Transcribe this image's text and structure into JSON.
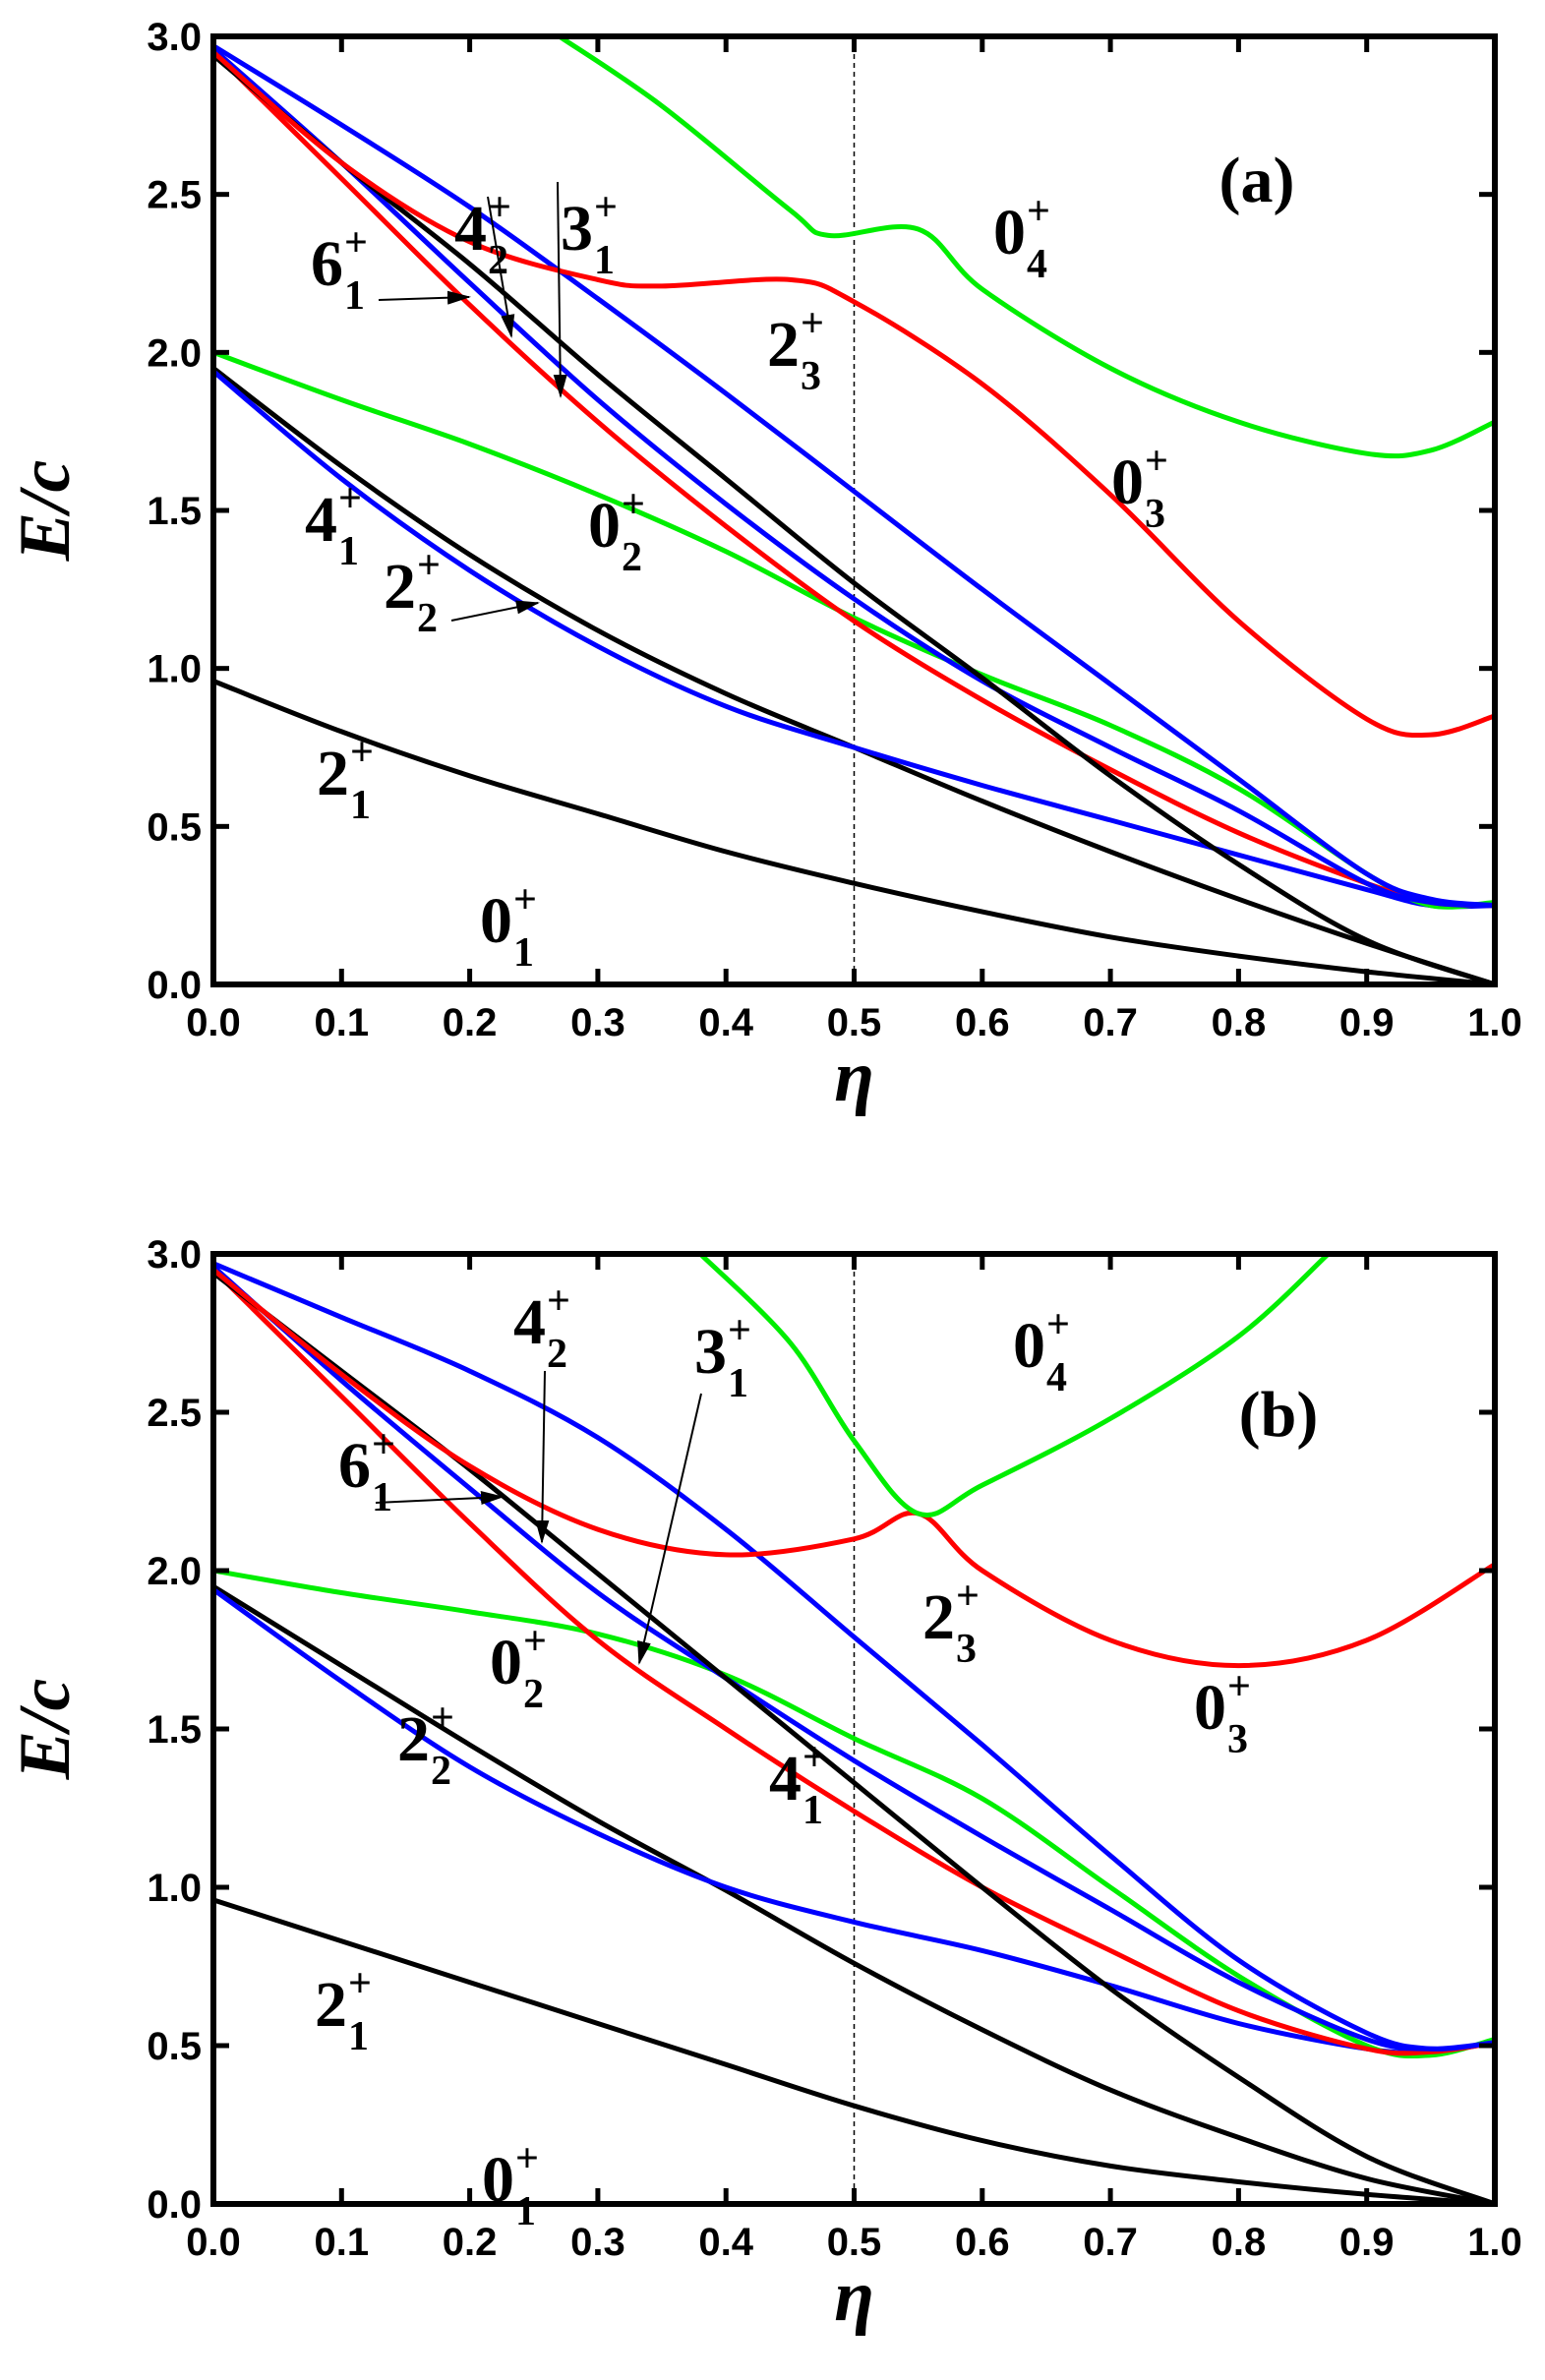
{
  "chart_data": [
    {
      "type": "line",
      "panel_label": "(a)",
      "xlabel": "η",
      "ylabel": "E/c",
      "xlim": [
        0,
        1
      ],
      "ylim": [
        0,
        3
      ],
      "xticks": [
        "0.0",
        "0.1",
        "0.2",
        "0.3",
        "0.4",
        "0.5",
        "0.6",
        "0.7",
        "0.8",
        "0.9",
        "1.0"
      ],
      "yticks": [
        "0.0",
        "0.5",
        "1.0",
        "1.5",
        "2.0",
        "2.5",
        "3.0"
      ],
      "reference_line_x": 0.5,
      "series": [
        {
          "name": "2+1",
          "color": "#000000",
          "x": [
            0,
            0.1,
            0.2,
            0.3,
            0.4,
            0.5,
            0.6,
            0.7,
            0.8,
            0.9,
            1.0
          ],
          "y": [
            0.96,
            0.8,
            0.66,
            0.54,
            0.42,
            0.32,
            0.23,
            0.15,
            0.09,
            0.04,
            0.0
          ]
        },
        {
          "name": "4+1",
          "color": "#000000",
          "x": [
            0,
            0.1,
            0.2,
            0.3,
            0.4,
            0.5,
            0.6,
            0.7,
            0.8,
            0.9,
            1.0
          ],
          "y": [
            1.95,
            1.64,
            1.36,
            1.12,
            0.92,
            0.75,
            0.58,
            0.42,
            0.27,
            0.13,
            0.0
          ]
        },
        {
          "name": "2+2",
          "color": "#0000ff",
          "x": [
            0,
            0.1,
            0.2,
            0.3,
            0.4,
            0.5,
            0.6,
            0.7,
            0.8,
            0.9,
            0.95,
            1.0
          ],
          "y": [
            1.94,
            1.6,
            1.31,
            1.07,
            0.88,
            0.75,
            0.63,
            0.52,
            0.41,
            0.3,
            0.25,
            0.25
          ]
        },
        {
          "name": "0+2",
          "color": "#00ee00",
          "x": [
            0,
            0.1,
            0.2,
            0.3,
            0.4,
            0.5,
            0.6,
            0.7,
            0.8,
            0.9,
            0.95,
            1.0
          ],
          "y": [
            2.0,
            1.85,
            1.71,
            1.55,
            1.37,
            1.16,
            0.98,
            0.82,
            0.62,
            0.35,
            0.25,
            0.26
          ]
        },
        {
          "name": "6+1",
          "color": "#ff0000",
          "x": [
            0,
            0.1,
            0.2,
            0.3,
            0.4,
            0.5,
            0.6,
            0.7,
            0.8,
            0.9,
            0.95,
            1.0
          ],
          "y": [
            2.95,
            2.55,
            2.15,
            1.78,
            1.45,
            1.15,
            0.9,
            0.68,
            0.48,
            0.32,
            0.26,
            0.25
          ]
        },
        {
          "name": "3+1",
          "color": "#0000ff",
          "x": [
            0,
            0.1,
            0.2,
            0.3,
            0.4,
            0.5,
            0.6,
            0.7,
            0.8,
            0.9,
            0.95,
            1.0
          ],
          "y": [
            2.96,
            2.6,
            2.22,
            1.85,
            1.52,
            1.22,
            0.96,
            0.75,
            0.55,
            0.32,
            0.26,
            0.25
          ]
        },
        {
          "name": "4+2",
          "color": "#000000",
          "x": [
            0,
            0.1,
            0.2,
            0.3,
            0.4,
            0.5,
            0.6,
            0.7,
            0.8,
            0.9,
            1.0
          ],
          "y": [
            2.94,
            2.6,
            2.28,
            1.93,
            1.6,
            1.27,
            0.97,
            0.66,
            0.38,
            0.14,
            0.0
          ]
        },
        {
          "name": "2+3",
          "color": "#0000ff",
          "x": [
            0,
            0.1,
            0.2,
            0.3,
            0.4,
            0.5,
            0.6,
            0.7,
            0.8,
            0.9,
            0.95,
            1.0
          ],
          "y": [
            2.97,
            2.72,
            2.46,
            2.17,
            1.87,
            1.56,
            1.25,
            0.95,
            0.65,
            0.35,
            0.27,
            0.25
          ]
        },
        {
          "name": "0+3",
          "color": "#ff0000",
          "x": [
            0,
            0.1,
            0.2,
            0.3,
            0.35,
            0.45,
            0.5,
            0.6,
            0.7,
            0.8,
            0.9,
            0.95,
            1.0
          ],
          "y": [
            2.95,
            2.6,
            2.35,
            2.23,
            2.21,
            2.23,
            2.16,
            1.9,
            1.55,
            1.15,
            0.84,
            0.79,
            0.85
          ]
        },
        {
          "name": "0+4",
          "color": "#00ee00",
          "x": [
            0.27,
            0.35,
            0.45,
            0.48,
            0.55,
            0.6,
            0.7,
            0.8,
            0.9,
            0.95,
            1.0
          ],
          "y": [
            3.0,
            2.78,
            2.45,
            2.37,
            2.39,
            2.2,
            1.95,
            1.78,
            1.68,
            1.69,
            1.78
          ]
        }
      ],
      "labels": [
        {
          "main": "4",
          "sup": "+",
          "sub": "2"
        },
        {
          "main": "3",
          "sup": "+",
          "sub": "1"
        },
        {
          "main": "6",
          "sup": "+",
          "sub": "1"
        },
        {
          "main": "2",
          "sup": "+",
          "sub": "3"
        },
        {
          "main": "0",
          "sup": "+",
          "sub": "4"
        },
        {
          "main": "0",
          "sup": "+",
          "sub": "3"
        },
        {
          "main": "4",
          "sup": "+",
          "sub": "1"
        },
        {
          "main": "0",
          "sup": "+",
          "sub": "2"
        },
        {
          "main": "2",
          "sup": "+",
          "sub": "2"
        },
        {
          "main": "2",
          "sup": "+",
          "sub": "1"
        },
        {
          "main": "0",
          "sup": "+",
          "sub": "1"
        }
      ]
    },
    {
      "type": "line",
      "panel_label": "(b)",
      "xlabel": "η",
      "ylabel": "E/c",
      "xlim": [
        0,
        1
      ],
      "ylim": [
        0,
        3
      ],
      "xticks": [
        "0.0",
        "0.1",
        "0.2",
        "0.3",
        "0.4",
        "0.5",
        "0.6",
        "0.7",
        "0.8",
        "0.9",
        "1.0"
      ],
      "yticks": [
        "0.0",
        "0.5",
        "1.0",
        "1.5",
        "2.0",
        "2.5",
        "3.0"
      ],
      "reference_line_x": 0.5,
      "series": [
        {
          "name": "2+1",
          "color": "#000000",
          "x": [
            0,
            0.1,
            0.2,
            0.3,
            0.4,
            0.5,
            0.6,
            0.7,
            0.8,
            0.9,
            1.0
          ],
          "y": [
            0.96,
            0.83,
            0.7,
            0.57,
            0.44,
            0.31,
            0.2,
            0.12,
            0.07,
            0.03,
            0.0
          ]
        },
        {
          "name": "4+1",
          "color": "#000000",
          "x": [
            0,
            0.1,
            0.2,
            0.3,
            0.4,
            0.5,
            0.6,
            0.7,
            0.8,
            0.9,
            1.0
          ],
          "y": [
            1.95,
            1.7,
            1.45,
            1.21,
            0.99,
            0.76,
            0.55,
            0.36,
            0.21,
            0.08,
            0.0
          ]
        },
        {
          "name": "2+2",
          "color": "#0000ff",
          "x": [
            0,
            0.1,
            0.2,
            0.3,
            0.4,
            0.5,
            0.6,
            0.7,
            0.8,
            0.9,
            0.95,
            1.0
          ],
          "y": [
            1.94,
            1.65,
            1.38,
            1.17,
            1.0,
            0.89,
            0.8,
            0.69,
            0.57,
            0.49,
            0.48,
            0.51
          ]
        },
        {
          "name": "0+2",
          "color": "#00ee00",
          "x": [
            0,
            0.1,
            0.2,
            0.3,
            0.4,
            0.5,
            0.6,
            0.7,
            0.8,
            0.9,
            0.95,
            1.0
          ],
          "y": [
            2.0,
            1.93,
            1.87,
            1.8,
            1.67,
            1.47,
            1.28,
            1.0,
            0.72,
            0.5,
            0.47,
            0.52
          ]
        },
        {
          "name": "6+1",
          "color": "#ff0000",
          "x": [
            0,
            0.1,
            0.2,
            0.3,
            0.4,
            0.5,
            0.6,
            0.7,
            0.8,
            0.9,
            0.95,
            1.0
          ],
          "y": [
            2.95,
            2.55,
            2.15,
            1.78,
            1.5,
            1.24,
            1.0,
            0.8,
            0.61,
            0.49,
            0.48,
            0.51
          ]
        },
        {
          "name": "3+1",
          "color": "#0000ff",
          "x": [
            0,
            0.1,
            0.2,
            0.3,
            0.4,
            0.5,
            0.6,
            0.7,
            0.8,
            0.9,
            0.95,
            1.0
          ],
          "y": [
            2.96,
            2.6,
            2.26,
            1.93,
            1.66,
            1.4,
            1.16,
            0.93,
            0.7,
            0.52,
            0.49,
            0.51
          ]
        },
        {
          "name": "4+2",
          "color": "#000000",
          "x": [
            0,
            0.1,
            0.2,
            0.3,
            0.4,
            0.5,
            0.6,
            0.7,
            0.8,
            0.9,
            1.0
          ],
          "y": [
            2.94,
            2.63,
            2.32,
            1.99,
            1.66,
            1.33,
            1.0,
            0.68,
            0.4,
            0.15,
            0.0
          ]
        },
        {
          "name": "2+3",
          "color": "#0000ff",
          "x": [
            0,
            0.1,
            0.2,
            0.3,
            0.4,
            0.5,
            0.6,
            0.7,
            0.8,
            0.9,
            0.95,
            1.0
          ],
          "y": [
            2.97,
            2.8,
            2.63,
            2.42,
            2.13,
            1.79,
            1.45,
            1.1,
            0.77,
            0.54,
            0.49,
            0.51
          ]
        },
        {
          "name": "0+3",
          "color": "#ff0000",
          "x": [
            0,
            0.1,
            0.2,
            0.3,
            0.4,
            0.5,
            0.55,
            0.6,
            0.7,
            0.8,
            0.9,
            1.0
          ],
          "y": [
            2.95,
            2.62,
            2.33,
            2.13,
            2.05,
            2.1,
            2.18,
            2.0,
            1.78,
            1.7,
            1.78,
            2.02
          ]
        },
        {
          "name": "0+4",
          "color": "#00ee00",
          "x": [
            0.38,
            0.45,
            0.5,
            0.55,
            0.6,
            0.7,
            0.8,
            0.87
          ],
          "y": [
            3.0,
            2.72,
            2.41,
            2.18,
            2.27,
            2.48,
            2.74,
            3.0
          ]
        }
      ],
      "labels": [
        {
          "main": "4",
          "sup": "+",
          "sub": "2"
        },
        {
          "main": "3",
          "sup": "+",
          "sub": "1"
        },
        {
          "main": "6",
          "sup": "+",
          "sub": "1"
        },
        {
          "main": "2",
          "sup": "+",
          "sub": "3"
        },
        {
          "main": "0",
          "sup": "+",
          "sub": "4"
        },
        {
          "main": "0",
          "sup": "+",
          "sub": "3"
        },
        {
          "main": "4",
          "sup": "+",
          "sub": "1"
        },
        {
          "main": "0",
          "sup": "+",
          "sub": "2"
        },
        {
          "main": "2",
          "sup": "+",
          "sub": "2"
        },
        {
          "main": "2",
          "sup": "+",
          "sub": "1"
        },
        {
          "main": "0",
          "sup": "+",
          "sub": "1"
        }
      ]
    }
  ]
}
